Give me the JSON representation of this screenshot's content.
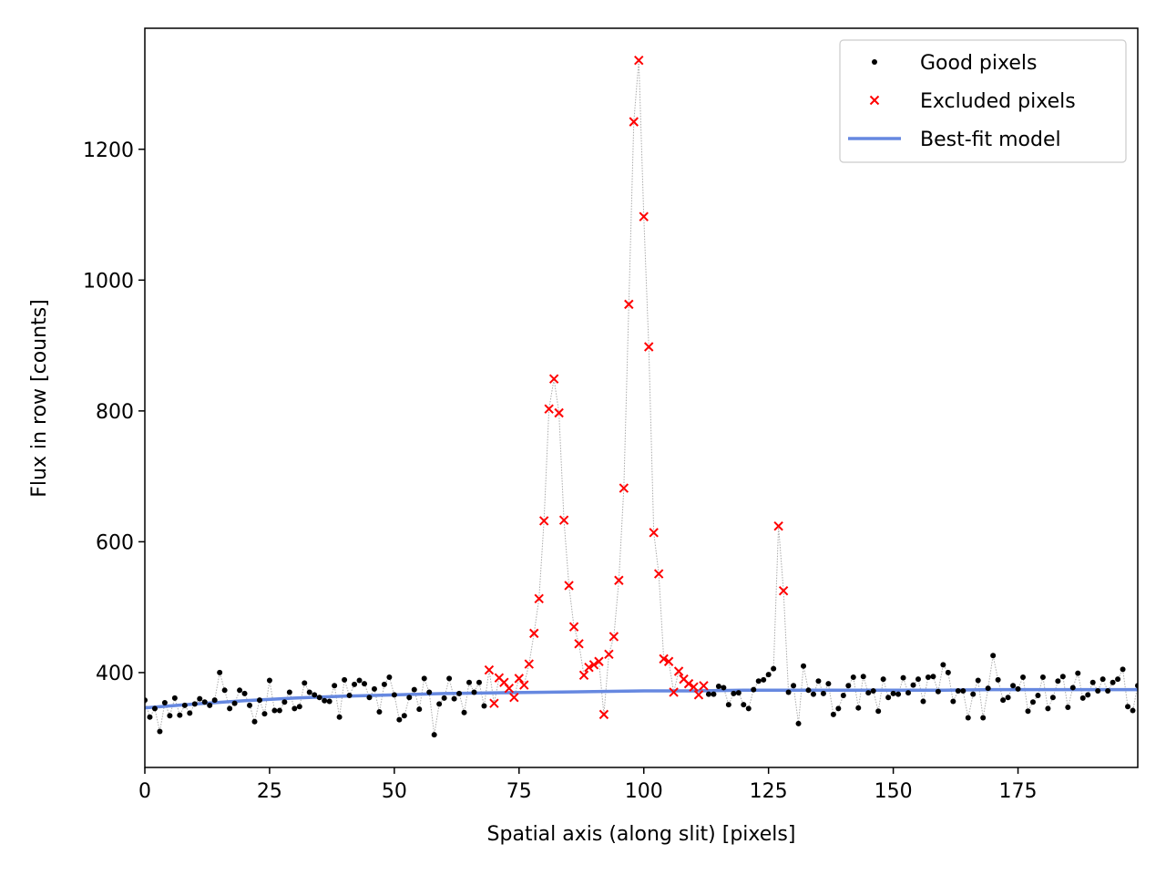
{
  "chart_data": {
    "type": "scatter",
    "title": "",
    "xlabel": "Spatial axis (along slit)  [pixels]",
    "ylabel": "Flux in row  [counts]",
    "xlim": [
      0,
      199
    ],
    "ylim": [
      255,
      1385
    ],
    "xticks": [
      0,
      25,
      50,
      75,
      100,
      125,
      150,
      175
    ],
    "yticks": [
      400,
      600,
      800,
      1000,
      1200
    ],
    "grid": false,
    "legend_position": "top-right",
    "colors": {
      "good": "#000000",
      "excluded": "#ff0000",
      "model": "#6688e0",
      "connector": "#aaaaaa"
    },
    "legend": [
      {
        "label": "Good pixels",
        "marker": "dot"
      },
      {
        "label": "Excluded pixels",
        "marker": "x"
      },
      {
        "label": "Best-fit model",
        "marker": "line"
      }
    ],
    "series": [
      {
        "name": "Good pixels",
        "x": [
          0,
          1,
          2,
          3,
          4,
          5,
          6,
          7,
          8,
          9,
          10,
          11,
          12,
          13,
          14,
          15,
          16,
          17,
          18,
          19,
          20,
          21,
          22,
          23,
          24,
          25,
          26,
          27,
          28,
          29,
          30,
          31,
          32,
          33,
          34,
          35,
          36,
          37,
          38,
          39,
          40,
          41,
          42,
          43,
          44,
          45,
          46,
          47,
          48,
          49,
          50,
          51,
          52,
          53,
          54,
          55,
          56,
          57,
          58,
          59,
          60,
          61,
          62,
          63,
          64,
          65,
          66,
          67,
          68,
          113,
          114,
          115,
          116,
          117,
          118,
          119,
          120,
          121,
          122,
          123,
          124,
          125,
          126,
          129,
          130,
          131,
          132,
          133,
          134,
          135,
          136,
          137,
          138,
          139,
          140,
          141,
          142,
          143,
          144,
          145,
          146,
          147,
          148,
          149,
          150,
          151,
          152,
          153,
          154,
          155,
          156,
          157,
          158,
          159,
          160,
          161,
          162,
          163,
          164,
          165,
          166,
          167,
          168,
          169,
          170,
          171,
          172,
          173,
          174,
          175,
          176,
          177,
          178,
          179,
          180,
          181,
          182,
          183,
          184,
          185,
          186,
          187,
          188,
          189,
          190,
          191,
          192,
          193,
          194,
          195,
          196,
          197,
          198,
          199
        ],
        "y": [
          358,
          332,
          345,
          310,
          354,
          334,
          361,
          335,
          350,
          338,
          352,
          360,
          355,
          350,
          358,
          400,
          373,
          345,
          353,
          373,
          368,
          350,
          325,
          358,
          337,
          388,
          342,
          342,
          355,
          370,
          345,
          348,
          384,
          370,
          366,
          362,
          357,
          356,
          380,
          332,
          389,
          365,
          382,
          388,
          383,
          362,
          375,
          340,
          382,
          393,
          366,
          328,
          334,
          362,
          374,
          344,
          391,
          370,
          305,
          352,
          361,
          391,
          360,
          368,
          339,
          385,
          370,
          385,
          349,
          367,
          367,
          379,
          377,
          351,
          368,
          369,
          351,
          345,
          374,
          387,
          389,
          397,
          406,
          370,
          380,
          322,
          410,
          373,
          367,
          387,
          368,
          383,
          336,
          345,
          365,
          380,
          393,
          346,
          394,
          369,
          372,
          341,
          390,
          362,
          368,
          367,
          392,
          369,
          381,
          390,
          356,
          393,
          394,
          371,
          412,
          400,
          356,
          372,
          372,
          331,
          367,
          388,
          331,
          376,
          426,
          389,
          358,
          362,
          380,
          375,
          393,
          341,
          355,
          365,
          393,
          345,
          362,
          387,
          394,
          347,
          377,
          399,
          361,
          366,
          385,
          372,
          390,
          372,
          385,
          390,
          405,
          348,
          342,
          380
        ]
      },
      {
        "name": "Excluded pixels",
        "x": [
          69,
          70,
          71,
          72,
          73,
          74,
          75,
          76,
          77,
          78,
          79,
          80,
          81,
          82,
          83,
          84,
          85,
          86,
          87,
          88,
          89,
          90,
          91,
          92,
          93,
          94,
          95,
          96,
          97,
          98,
          99,
          100,
          101,
          102,
          103,
          104,
          105,
          106,
          107,
          108,
          109,
          110,
          111,
          112,
          127,
          128
        ],
        "y": [
          404,
          353,
          392,
          385,
          376,
          362,
          391,
          381,
          413,
          460,
          513,
          632,
          803,
          849,
          797,
          633,
          533,
          470,
          444,
          396,
          408,
          412,
          417,
          336,
          428,
          455,
          541,
          682,
          963,
          1242,
          1336,
          1097,
          898,
          614,
          551,
          421,
          417,
          370,
          402,
          390,
          383,
          378,
          366,
          380,
          624,
          525
        ]
      },
      {
        "name": "Best-fit model",
        "x": [
          0,
          10,
          20,
          30,
          40,
          50,
          60,
          70,
          80,
          90,
          100,
          110,
          120,
          130,
          140,
          150,
          160,
          170,
          180,
          190,
          199
        ],
        "y": [
          346,
          352,
          357,
          361,
          364,
          366,
          368,
          369,
          370,
          371,
          372,
          372,
          373,
          373,
          373,
          373,
          373,
          374,
          374,
          374,
          374
        ]
      }
    ]
  }
}
